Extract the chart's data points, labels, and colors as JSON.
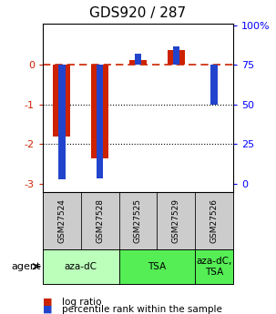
{
  "title": "GDS920 / 287",
  "samples": [
    "GSM27524",
    "GSM27528",
    "GSM27525",
    "GSM27529",
    "GSM27526"
  ],
  "log_ratios": [
    -1.8,
    -2.35,
    0.12,
    0.38,
    0.0
  ],
  "percentile_ranks": [
    3.0,
    3.5,
    82.0,
    87.0,
    50.0
  ],
  "agents": [
    {
      "label": "aza-dC",
      "start": 0,
      "end": 1,
      "color": "#bbffbb"
    },
    {
      "label": "TSA",
      "start": 2,
      "end": 3,
      "color": "#55ee55"
    },
    {
      "label": "aza-dC,\nTSA",
      "start": 4,
      "end": 4,
      "color": "#55ee55"
    }
  ],
  "ylim": [
    -3.2,
    1.05
  ],
  "y_ticks_left": [
    -3,
    -2,
    -1,
    0
  ],
  "y_ticks_right_vals": [
    0,
    25,
    50,
    75,
    100
  ],
  "y_ticks_right_pos": [
    -3.0,
    -2.0,
    -1.0,
    0.0,
    1.0
  ],
  "red_color": "#cc2200",
  "blue_color": "#2244cc",
  "sample_box_color": "#cccccc",
  "agent_light_color": "#bbffbb",
  "agent_dark_color": "#55ee55"
}
